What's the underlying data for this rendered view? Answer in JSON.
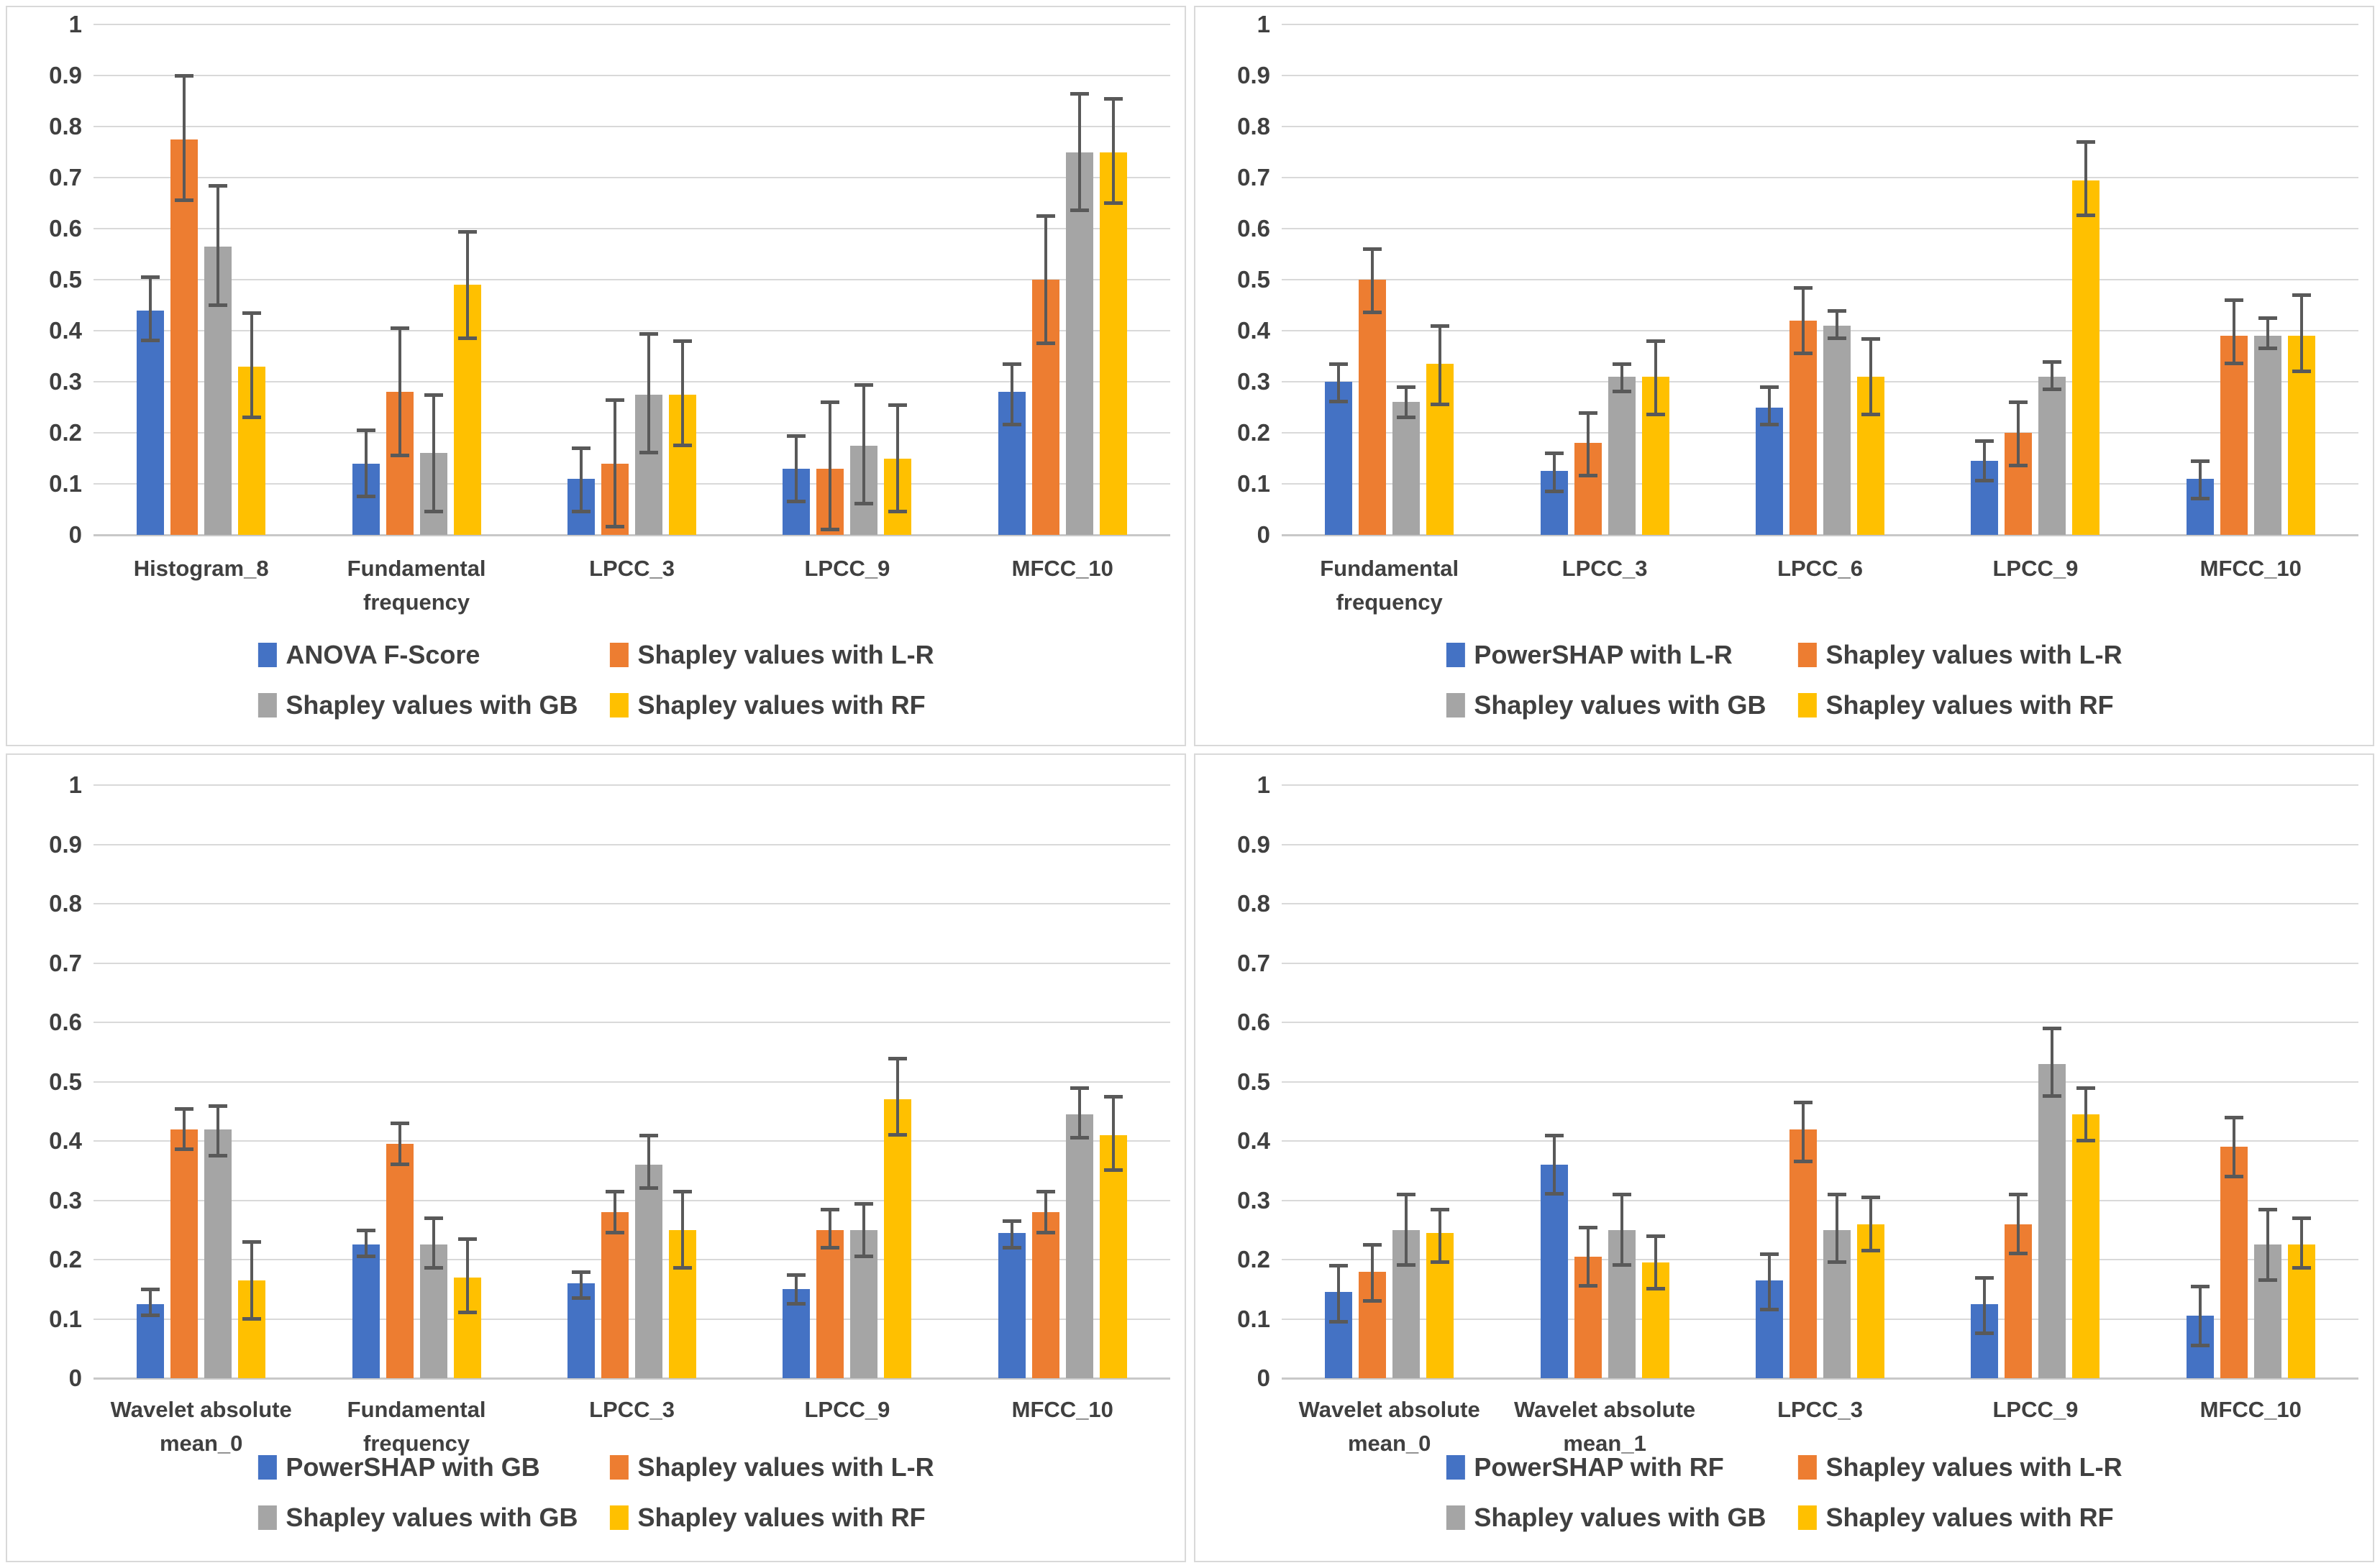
{
  "figure": {
    "description_visible_text_only": "Four grouped bar charts with error bars",
    "background": "#ffffff",
    "text_color": "#404040",
    "gridline_color": "#d9d9d9",
    "error_bar_color": "#595959"
  },
  "colors": {
    "blue": "#4472C4",
    "orange": "#ED7D31",
    "gray": "#A5A5A5",
    "yellow": "#FFC000"
  },
  "chart_data": [
    {
      "type": "bar",
      "position": "top-left",
      "ylim": [
        0,
        1
      ],
      "grid": true,
      "legend_position": "bottom",
      "y_ticks": [
        "1",
        "0.9",
        "0.8",
        "0.7",
        "0.6",
        "0.5",
        "0.4",
        "0.3",
        "0.2",
        "0.1",
        "0"
      ],
      "categories": [
        "Histogram_8",
        "Fundamental frequency",
        "LPCC_3",
        "LPCC_9",
        "MFCC_10"
      ],
      "series": [
        {
          "name": "ANOVA F-Score",
          "color": "#4472C4",
          "values": [
            0.44,
            0.14,
            0.11,
            0.13,
            0.28
          ],
          "err_low": [
            0.38,
            0.075,
            0.045,
            0.065,
            0.215
          ],
          "err_high": [
            0.505,
            0.205,
            0.17,
            0.195,
            0.335
          ]
        },
        {
          "name": "Shapley values with L-R",
          "color": "#ED7D31",
          "values": [
            0.775,
            0.28,
            0.14,
            0.13,
            0.5
          ],
          "err_low": [
            0.655,
            0.155,
            0.015,
            0.01,
            0.375
          ],
          "err_high": [
            0.9,
            0.405,
            0.265,
            0.26,
            0.625
          ]
        },
        {
          "name": "Shapley values with GB",
          "color": "#A5A5A5",
          "values": [
            0.565,
            0.16,
            0.275,
            0.175,
            0.75
          ],
          "err_low": [
            0.45,
            0.045,
            0.16,
            0.06,
            0.635
          ],
          "err_high": [
            0.685,
            0.275,
            0.395,
            0.295,
            0.865
          ]
        },
        {
          "name": "Shapley values with RF",
          "color": "#FFC000",
          "values": [
            0.33,
            0.49,
            0.275,
            0.15,
            0.75
          ],
          "err_low": [
            0.23,
            0.385,
            0.175,
            0.045,
            0.65
          ],
          "err_high": [
            0.435,
            0.595,
            0.38,
            0.255,
            0.855
          ]
        }
      ]
    },
    {
      "type": "bar",
      "position": "top-right",
      "ylim": [
        0,
        1
      ],
      "grid": true,
      "legend_position": "bottom",
      "y_ticks": [
        "1",
        "0.9",
        "0.8",
        "0.7",
        "0.6",
        "0.5",
        "0.4",
        "0.3",
        "0.2",
        "0.1",
        "0"
      ],
      "categories": [
        "Fundamental frequency",
        "LPCC_3",
        "LPCC_6",
        "LPCC_9",
        "MFCC_10"
      ],
      "series": [
        {
          "name": "PowerSHAP with L-R",
          "color": "#4472C4",
          "values": [
            0.3,
            0.125,
            0.25,
            0.145,
            0.11
          ],
          "err_low": [
            0.26,
            0.085,
            0.215,
            0.105,
            0.07
          ],
          "err_high": [
            0.335,
            0.16,
            0.29,
            0.185,
            0.145
          ]
        },
        {
          "name": "Shapley values with L-R",
          "color": "#ED7D31",
          "values": [
            0.5,
            0.18,
            0.42,
            0.2,
            0.39
          ],
          "err_low": [
            0.435,
            0.115,
            0.355,
            0.135,
            0.335
          ],
          "err_high": [
            0.56,
            0.24,
            0.485,
            0.26,
            0.46
          ]
        },
        {
          "name": "Shapley values with GB",
          "color": "#A5A5A5",
          "values": [
            0.26,
            0.31,
            0.41,
            0.31,
            0.39
          ],
          "err_low": [
            0.23,
            0.28,
            0.385,
            0.285,
            0.365
          ],
          "err_high": [
            0.29,
            0.335,
            0.44,
            0.34,
            0.425
          ]
        },
        {
          "name": "Shapley values with RF",
          "color": "#FFC000",
          "values": [
            0.335,
            0.31,
            0.31,
            0.695,
            0.39
          ],
          "err_low": [
            0.255,
            0.235,
            0.235,
            0.625,
            0.32
          ],
          "err_high": [
            0.41,
            0.38,
            0.385,
            0.77,
            0.47
          ]
        }
      ]
    },
    {
      "type": "bar",
      "position": "bottom-left",
      "ylim": [
        0,
        1
      ],
      "grid": true,
      "legend_position": "bottom",
      "y_ticks": [
        "1",
        "0.9",
        "0.8",
        "0.7",
        "0.6",
        "0.5",
        "0.4",
        "0.3",
        "0.2",
        "0.1",
        "0"
      ],
      "categories": [
        "Wavelet absolute mean_0",
        "Fundamental frequency",
        "LPCC_3",
        "LPCC_9",
        "MFCC_10"
      ],
      "series": [
        {
          "name": "PowerSHAP with GB",
          "color": "#4472C4",
          "values": [
            0.125,
            0.225,
            0.16,
            0.15,
            0.245
          ],
          "err_low": [
            0.105,
            0.205,
            0.135,
            0.125,
            0.22
          ],
          "err_high": [
            0.15,
            0.25,
            0.18,
            0.175,
            0.265
          ]
        },
        {
          "name": "Shapley values with L-R",
          "color": "#ED7D31",
          "values": [
            0.42,
            0.395,
            0.28,
            0.25,
            0.28
          ],
          "err_low": [
            0.385,
            0.36,
            0.245,
            0.22,
            0.245
          ],
          "err_high": [
            0.455,
            0.43,
            0.315,
            0.285,
            0.315
          ]
        },
        {
          "name": "Shapley values with GB",
          "color": "#A5A5A5",
          "values": [
            0.42,
            0.225,
            0.36,
            0.25,
            0.445
          ],
          "err_low": [
            0.375,
            0.185,
            0.32,
            0.205,
            0.405
          ],
          "err_high": [
            0.46,
            0.27,
            0.41,
            0.295,
            0.49
          ]
        },
        {
          "name": "Shapley values with RF",
          "color": "#FFC000",
          "values": [
            0.165,
            0.17,
            0.25,
            0.47,
            0.41
          ],
          "err_low": [
            0.1,
            0.11,
            0.185,
            0.41,
            0.35
          ],
          "err_high": [
            0.23,
            0.235,
            0.315,
            0.54,
            0.475
          ]
        }
      ]
    },
    {
      "type": "bar",
      "position": "bottom-right",
      "ylim": [
        0,
        1
      ],
      "grid": true,
      "legend_position": "bottom",
      "y_ticks": [
        "1",
        "0.9",
        "0.8",
        "0.7",
        "0.6",
        "0.5",
        "0.4",
        "0.3",
        "0.2",
        "0.1",
        "0"
      ],
      "categories": [
        "Wavelet absolute mean_0",
        "Wavelet absolute mean_1",
        "LPCC_3",
        "LPCC_9",
        "MFCC_10"
      ],
      "series": [
        {
          "name": "PowerSHAP with RF",
          "color": "#4472C4",
          "values": [
            0.145,
            0.36,
            0.165,
            0.125,
            0.105
          ],
          "err_low": [
            0.095,
            0.31,
            0.115,
            0.075,
            0.055
          ],
          "err_high": [
            0.19,
            0.41,
            0.21,
            0.17,
            0.155
          ]
        },
        {
          "name": "Shapley values with L-R",
          "color": "#ED7D31",
          "values": [
            0.18,
            0.205,
            0.42,
            0.26,
            0.39
          ],
          "err_low": [
            0.13,
            0.155,
            0.365,
            0.21,
            0.34
          ],
          "err_high": [
            0.225,
            0.255,
            0.465,
            0.31,
            0.44
          ]
        },
        {
          "name": "Shapley values with GB",
          "color": "#A5A5A5",
          "values": [
            0.25,
            0.25,
            0.25,
            0.53,
            0.225
          ],
          "err_low": [
            0.19,
            0.19,
            0.195,
            0.475,
            0.165
          ],
          "err_high": [
            0.31,
            0.31,
            0.31,
            0.59,
            0.285
          ]
        },
        {
          "name": "Shapley values with RF",
          "color": "#FFC000",
          "values": [
            0.245,
            0.195,
            0.26,
            0.445,
            0.225
          ],
          "err_low": [
            0.195,
            0.15,
            0.215,
            0.4,
            0.185
          ],
          "err_high": [
            0.285,
            0.24,
            0.305,
            0.49,
            0.27
          ]
        }
      ]
    }
  ]
}
